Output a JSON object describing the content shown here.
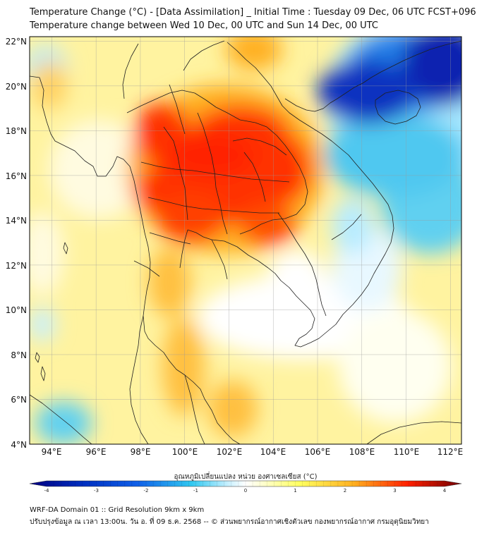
{
  "title_line1": "Temperature Change (°C) - [Data Assimilation] _ Initial Time : Tuesday 09 Dec, 06 UTC FCST+096",
  "title_line2": "Temperature change between Wed 10 Dec, 00 UTC and Sun 14 Dec, 00 UTC",
  "map": {
    "lon_range": [
      93,
      112.5
    ],
    "lat_range": [
      4,
      22.2
    ],
    "lon_ticks": [
      "94°E",
      "96°E",
      "98°E",
      "100°E",
      "102°E",
      "104°E",
      "106°E",
      "108°E",
      "110°E",
      "112°E"
    ],
    "lat_ticks": [
      "22°N",
      "20°N",
      "18°N",
      "16°N",
      "14°N",
      "12°N",
      "10°N",
      "8°N",
      "6°N",
      "4°N"
    ],
    "grid": true
  },
  "colorbar": {
    "title": "อุณหภูมิเปลี่ยนแปลง หน่วย องศาเซลเซียส (°C)",
    "ticks": [
      "-4",
      "-3",
      "-2",
      "-1",
      "0",
      "1",
      "2",
      "3",
      "4"
    ],
    "range": [
      -4,
      4
    ],
    "colors": {
      "minus4": "#000080",
      "minus2": "#1060e8",
      "minus1": "#30c8f0",
      "zero": "#ffffff",
      "plus1": "#ffff60",
      "plus2": "#ffb020",
      "plus3": "#ff2000",
      "plus4": "#700000"
    }
  },
  "footer_line1": "WRF-DA Domain 01 :: Grid Resolution 9km x 9km",
  "footer_line2": "ปรับปรุงข้อมูล ณ เวลา 13:00น. วัน อ. ที่ 09 ธ.ค. 2568 -- © ส่วนพยากรณ์อากาศเชิงตัวเลข กองพยากรณ์อากาศ กรมอุตุนิยมวิทยา"
}
